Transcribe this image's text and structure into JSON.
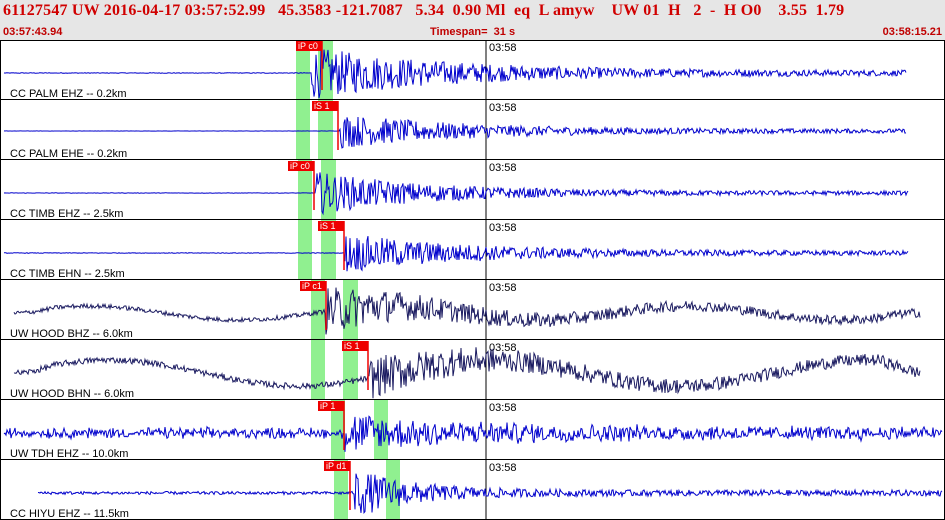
{
  "header": {
    "title": "61127547 UW 2016-04-17 03:57:52.99   45.3583 -121.7087   5.34  0.90 Ml  eq  L amyw    UW 01  H   2  -  H O0    3.55  1.79",
    "start_time": "03:57:43.94",
    "timespan": "Timespan=  31 s",
    "end_time": "03:58:15.21"
  },
  "minute_label": "03:58",
  "colors": {
    "header_bg": "#e6e6e6",
    "header_text": "#d00000",
    "trace_blue": "#0000cc",
    "trace_dark": "#1a1a60",
    "pick_red": "#ee0000",
    "window_green": "#90f090"
  },
  "channels": [
    {
      "label": "CC PALM EHZ -- 0.2km",
      "pick": "iP c0",
      "trace_color": "blue"
    },
    {
      "label": "CC PALM EHE -- 0.2km",
      "pick": "iS 1",
      "trace_color": "blue"
    },
    {
      "label": "CC TIMB EHZ -- 2.5km",
      "pick": "iP c0",
      "trace_color": "blue"
    },
    {
      "label": "CC TIMB EHN -- 2.5km",
      "pick": "iS 1",
      "trace_color": "blue"
    },
    {
      "label": "UW HOOD BHZ -- 6.0km",
      "pick": "iP c1",
      "trace_color": "dark"
    },
    {
      "label": "UW HOOD BHN -- 6.0km",
      "pick": "iS 1",
      "trace_color": "dark"
    },
    {
      "label": "UW TDH EHZ -- 10.0km",
      "pick": "iP 1",
      "trace_color": "blue"
    },
    {
      "label": "CC HIYU EHZ -- 11.5km",
      "pick": "iP d1",
      "trace_color": "blue"
    }
  ]
}
